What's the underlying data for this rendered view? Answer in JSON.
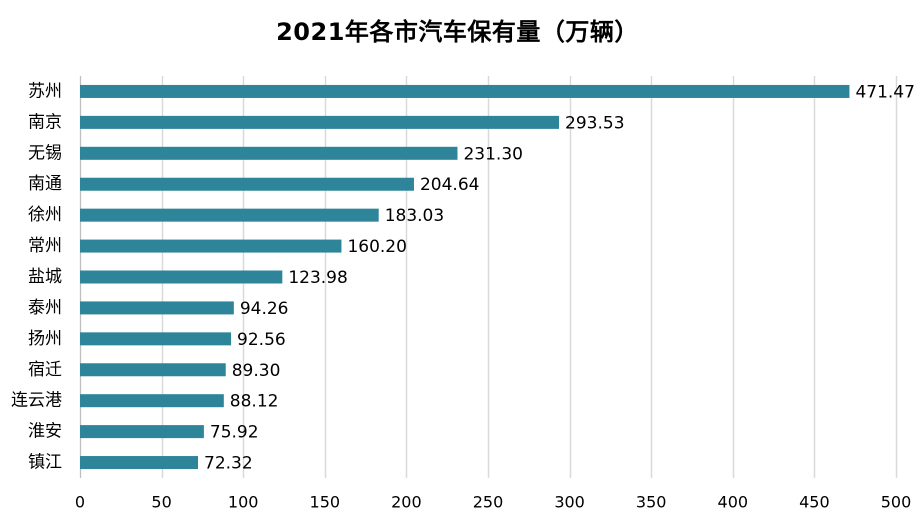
{
  "chart_data": {
    "type": "bar",
    "orientation": "horizontal",
    "title": "2021年各市汽车保有量（万辆）",
    "categories": [
      "苏州",
      "南京",
      "无锡",
      "南通",
      "徐州",
      "常州",
      "盐城",
      "泰州",
      "扬州",
      "宿迁",
      "连云港",
      "淮安",
      "镇江"
    ],
    "values": [
      471.47,
      293.53,
      231.3,
      204.64,
      183.03,
      160.2,
      123.98,
      94.26,
      92.56,
      89.3,
      88.12,
      75.92,
      72.32
    ],
    "value_labels": [
      "471.47",
      "293.53",
      "231.30",
      "204.64",
      "183.03",
      "160.20",
      "123.98",
      "94.26",
      "92.56",
      "89.30",
      "88.12",
      "75.92",
      "72.32"
    ],
    "xlim": [
      0,
      500
    ],
    "xticks": [
      0,
      50,
      100,
      150,
      200,
      250,
      300,
      350,
      400,
      450,
      500
    ],
    "xlabel": "",
    "ylabel": "",
    "grid": "vertical",
    "bar_color": "#2e8599",
    "grid_color": "#d9d9d9"
  }
}
